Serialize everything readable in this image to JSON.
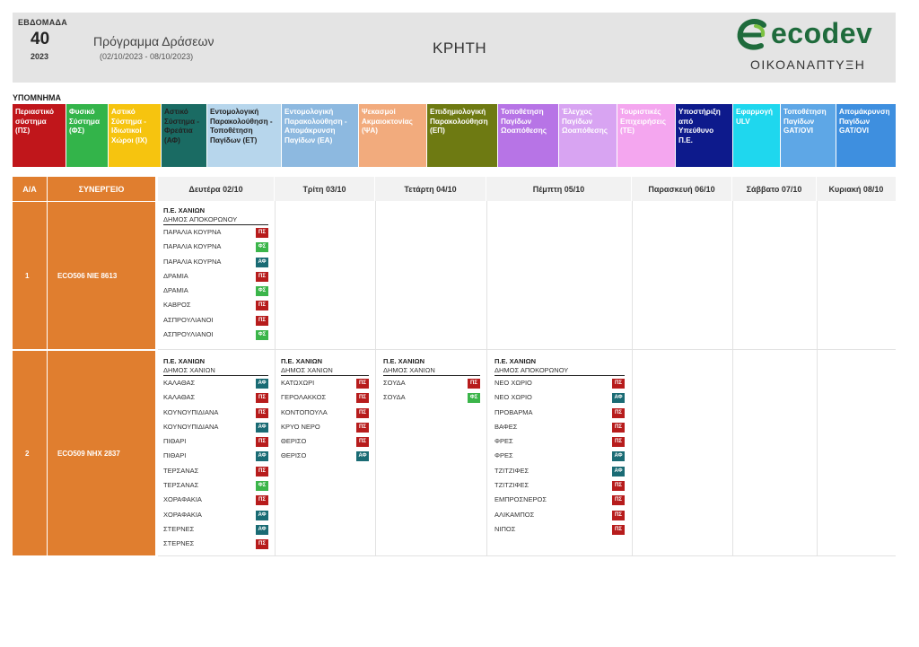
{
  "header": {
    "week_label": "ΕΒΔΟΜΑΔΑ",
    "week_number": "40",
    "year": "2023",
    "program_title": "Πρόγραμμα Δράσεων",
    "program_dates": "(02/10/2023 - 08/10/2023)",
    "region": "ΚΡΗΤΗ",
    "logo_text": "ecodev",
    "logo_subtitle": "ΟΙΚΟΑΝΑΠΤΥΞΗ"
  },
  "legend_title": "ΥΠΟΜΝΗΜΑ",
  "legend": [
    {
      "text": "Περιαστικό σύστημα (ΠΣ)",
      "bg": "#c0161b",
      "fg": "#ffffff"
    },
    {
      "text": "Φυσικό Σύστημα (ΦΣ)",
      "bg": "#33b44a",
      "fg": "#ffffff"
    },
    {
      "text": "Αστικό Σύστημα - Ιδιωτικοί Χώροι (ΙΧ)",
      "bg": "#f6c40f",
      "fg": "#ffffff"
    },
    {
      "text": "Αστικό Σύστημα - Φρεάτια (ΑΦ)",
      "bg": "#1a6b63",
      "fg": "#222222"
    },
    {
      "text": "Εντομολογική Παρακολούθηση - Τοποθέτηση Παγίδων (ΕΤ)",
      "bg": "#b7d6ec",
      "fg": "#222222"
    },
    {
      "text": "Εντομολογική Παρακολούθηση - Απομάκρυνση Παγίδων (ΕΑ)",
      "bg": "#8db9e0",
      "fg": "#ffffff"
    },
    {
      "text": "Ψεκασμοί Ακμαιοκτονίας (ΨΑ)",
      "bg": "#f2ab7d",
      "fg": "#ffffff"
    },
    {
      "text": "Επιδημιολογική Παρακολούθηση (ΕΠ)",
      "bg": "#6e7a12",
      "fg": "#ffffff"
    },
    {
      "text": "Τοποθέτηση Παγίδων Ωοαπόθεσης",
      "bg": "#b774e6",
      "fg": "#ffffff"
    },
    {
      "text": "Έλεγχος Παγίδων Ωοαπόθεσης",
      "bg": "#d8a4f2",
      "fg": "#ffffff"
    },
    {
      "text": "Τουριστικές Επιχειρήσεις (ΤΕ)",
      "bg": "#f4a6ef",
      "fg": "#ffffff"
    },
    {
      "text": "Υποστήριξη από Υπεύθυνο Π.Ε.",
      "bg": "#0d1a8c",
      "fg": "#ffffff"
    },
    {
      "text": "Εφαρμογή ULV",
      "bg": "#1fd7ee",
      "fg": "#ffffff"
    },
    {
      "text": "Τοποθέτηση Παγίδων GAT/OVI",
      "bg": "#5ea7e6",
      "fg": "#ffffff"
    },
    {
      "text": "Απομάκρυνση Παγίδων GAT/OVI",
      "bg": "#3e8fdf",
      "fg": "#ffffff"
    }
  ],
  "table": {
    "col_aa": "Α/Α",
    "col_team": "ΣΥΝΕΡΓΕΙΟ",
    "days": [
      "Δευτέρα 02/10",
      "Τρίτη 03/10",
      "Τετάρτη 04/10",
      "Πέμπτη 05/10",
      "Παρασκευή 06/10",
      "Σάββατο 07/10",
      "Κυριακή 08/10"
    ],
    "rows": [
      {
        "aa": "1",
        "team": "ECO506  NIE 8613",
        "days": [
          {
            "pe": "Π.Ε. ΧΑΝΙΩΝ",
            "dimos": "ΔΗΜΟΣ ΑΠΟΚΟΡΩΝΟΥ",
            "items": [
              {
                "name": "ΠΑΡΑΛΙΑ ΚΟΥΡΝΑ",
                "tag": "ΠΣ"
              },
              {
                "name": "ΠΑΡΑΛΙΑ ΚΟΥΡΝΑ",
                "tag": "ΦΣ"
              },
              {
                "name": "ΠΑΡΑΛΙΑ ΚΟΥΡΝΑ",
                "tag": "ΑΦ"
              },
              {
                "name": "ΔΡΑΜΙΑ",
                "tag": "ΠΣ"
              },
              {
                "name": "ΔΡΑΜΙΑ",
                "tag": "ΦΣ"
              },
              {
                "name": "ΚΑΒΡΟΣ",
                "tag": "ΠΣ"
              },
              {
                "name": "ΑΣΠΡΟΥΛΙΑΝΟΙ",
                "tag": "ΠΣ"
              },
              {
                "name": "ΑΣΠΡΟΥΛΙΑΝΟΙ",
                "tag": "ΦΣ"
              }
            ]
          }
        ]
      },
      {
        "aa": "2",
        "team": "ECO509  NHX 2837",
        "days": [
          {
            "pe": "Π.Ε. ΧΑΝΙΩΝ",
            "dimos": "ΔΗΜΟΣ ΧΑΝΙΩΝ",
            "items": [
              {
                "name": "ΚΑΛΑΘΑΣ",
                "tag": "ΑΦ"
              },
              {
                "name": "ΚΑΛΑΘΑΣ",
                "tag": "ΠΣ"
              },
              {
                "name": "ΚΟΥΝΟΥΠΙΔΙΑΝΑ",
                "tag": "ΠΣ"
              },
              {
                "name": "ΚΟΥΝΟΥΠΙΔΙΑΝΑ",
                "tag": "ΑΦ"
              },
              {
                "name": "ΠΙΘΑΡΙ",
                "tag": "ΠΣ"
              },
              {
                "name": "ΠΙΘΑΡΙ",
                "tag": "ΑΦ"
              },
              {
                "name": "ΤΕΡΣΑΝΑΣ",
                "tag": "ΠΣ"
              },
              {
                "name": "ΤΕΡΣΑΝΑΣ",
                "tag": "ΦΣ"
              },
              {
                "name": "ΧΟΡΑΦΑΚΙΑ",
                "tag": "ΠΣ"
              },
              {
                "name": "ΧΟΡΑΦΑΚΙΑ",
                "tag": "ΑΦ"
              },
              {
                "name": "ΣΤΕΡΝΕΣ",
                "tag": "ΑΦ"
              },
              {
                "name": "ΣΤΕΡΝΕΣ",
                "tag": "ΠΣ"
              }
            ]
          },
          {
            "pe": "Π.Ε. ΧΑΝΙΩΝ",
            "dimos": "ΔΗΜΟΣ ΧΑΝΙΩΝ",
            "items": [
              {
                "name": "ΚΑΤΩΧΩΡΙ",
                "tag": "ΠΣ"
              },
              {
                "name": "ΓΕΡΟΛΑΚΚΟΣ",
                "tag": "ΠΣ"
              },
              {
                "name": "ΚΟΝΤΟΠΟΥΛΑ",
                "tag": "ΠΣ"
              },
              {
                "name": "ΚΡΥΟ ΝΕΡΟ",
                "tag": "ΠΣ"
              },
              {
                "name": "ΘΕΡΙΣΟ",
                "tag": "ΠΣ"
              },
              {
                "name": "ΘΕΡΙΣΟ",
                "tag": "ΑΦ"
              }
            ]
          },
          {
            "pe": "Π.Ε. ΧΑΝΙΩΝ",
            "dimos": "ΔΗΜΟΣ ΧΑΝΙΩΝ",
            "items": [
              {
                "name": "ΣΟΥΔΑ",
                "tag": "ΠΣ"
              },
              {
                "name": "ΣΟΥΔΑ",
                "tag": "ΦΣ"
              }
            ]
          },
          {
            "pe": "Π.Ε. ΧΑΝΙΩΝ",
            "dimos": "ΔΗΜΟΣ ΑΠΟΚΟΡΩΝΟΥ",
            "items": [
              {
                "name": "ΝΕΟ ΧΩΡΙΟ",
                "tag": "ΠΣ"
              },
              {
                "name": "ΝΕΟ ΧΩΡΙΟ",
                "tag": "ΑΦ"
              },
              {
                "name": "ΠΡΟΒΑΡΜΑ",
                "tag": "ΠΣ"
              },
              {
                "name": "ΒΑΦΕΣ",
                "tag": "ΠΣ"
              },
              {
                "name": "ΦΡΕΣ",
                "tag": "ΠΣ"
              },
              {
                "name": "ΦΡΕΣ",
                "tag": "ΑΦ"
              },
              {
                "name": "ΤΖΙΤΖΙΦΕΣ",
                "tag": "ΑΦ"
              },
              {
                "name": "ΤΖΙΤΖΙΦΕΣ",
                "tag": "ΠΣ"
              },
              {
                "name": "ΕΜΠΡΟΣΝΕΡΟΣ",
                "tag": "ΠΣ"
              },
              {
                "name": "ΑΛΙΚΑΜΠΟΣ",
                "tag": "ΠΣ"
              },
              {
                "name": "ΝΙΠΟΣ",
                "tag": "ΠΣ"
              }
            ]
          }
        ]
      }
    ]
  }
}
